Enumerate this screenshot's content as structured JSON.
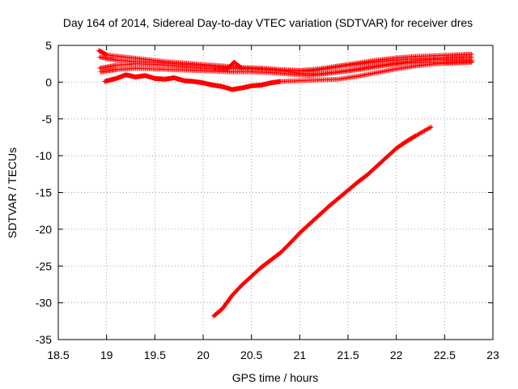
{
  "chart_data": {
    "type": "scatter",
    "title": "Day 164 of 2014, Sidereal Day-to-day VTEC variation (SDTVAR) for receiver dres",
    "xlabel": "GPS time / hours",
    "ylabel": "SDTVAR / TECUs",
    "xlim": [
      18.5,
      23
    ],
    "ylim": [
      -35,
      5
    ],
    "x_ticks": [
      "18.5",
      "19",
      "19.5",
      "20",
      "20.5",
      "21",
      "21.5",
      "22",
      "22.5",
      "23"
    ],
    "y_ticks": [
      "5",
      "0",
      "-5",
      "-10",
      "-15",
      "-20",
      "-25",
      "-30",
      "-35"
    ],
    "grid": true,
    "marker": "+",
    "series_color": "#ff0000",
    "series": [
      {
        "name": "trace-1",
        "points": [
          [
            18.92,
            4.3
          ],
          [
            19.0,
            3.7
          ],
          [
            19.2,
            3.4
          ],
          [
            19.4,
            3.1
          ],
          [
            19.6,
            2.8
          ],
          [
            19.8,
            2.6
          ],
          [
            20.0,
            2.4
          ],
          [
            20.2,
            2.2
          ],
          [
            20.4,
            2.0
          ],
          [
            20.6,
            1.9
          ],
          [
            20.8,
            1.7
          ],
          [
            21.0,
            1.6
          ],
          [
            21.2,
            1.8
          ],
          [
            21.4,
            2.2
          ],
          [
            21.6,
            2.6
          ],
          [
            21.8,
            3.0
          ],
          [
            22.0,
            3.3
          ],
          [
            22.2,
            3.5
          ],
          [
            22.4,
            3.6
          ],
          [
            22.6,
            3.7
          ],
          [
            22.78,
            3.8
          ]
        ]
      },
      {
        "name": "trace-2",
        "points": [
          [
            18.93,
            3.4
          ],
          [
            19.1,
            3.0
          ],
          [
            19.3,
            2.8
          ],
          [
            19.5,
            2.7
          ],
          [
            19.7,
            2.5
          ],
          [
            19.9,
            2.3
          ],
          [
            20.1,
            2.1
          ],
          [
            20.3,
            1.9
          ],
          [
            20.5,
            1.8
          ],
          [
            20.7,
            1.7
          ],
          [
            20.9,
            1.6
          ],
          [
            21.1,
            1.5
          ],
          [
            21.3,
            1.9
          ],
          [
            21.5,
            2.3
          ],
          [
            21.7,
            2.6
          ],
          [
            21.9,
            2.9
          ],
          [
            22.1,
            3.1
          ],
          [
            22.3,
            3.2
          ],
          [
            22.5,
            3.3
          ],
          [
            22.78,
            3.4
          ]
        ]
      },
      {
        "name": "trace-3",
        "points": [
          [
            18.93,
            1.9
          ],
          [
            19.1,
            2.3
          ],
          [
            19.3,
            2.5
          ],
          [
            19.5,
            2.4
          ],
          [
            19.7,
            2.2
          ],
          [
            19.9,
            2.0
          ],
          [
            20.1,
            1.8
          ],
          [
            20.25,
            1.8
          ],
          [
            20.32,
            2.7
          ],
          [
            20.4,
            1.9
          ],
          [
            20.6,
            1.8
          ],
          [
            20.8,
            1.6
          ],
          [
            21.0,
            1.2
          ],
          [
            21.2,
            1.1
          ],
          [
            21.4,
            1.4
          ],
          [
            21.6,
            1.8
          ],
          [
            21.8,
            2.2
          ],
          [
            22.0,
            2.6
          ],
          [
            22.2,
            2.9
          ],
          [
            22.4,
            3.1
          ],
          [
            22.6,
            3.0
          ],
          [
            22.78,
            3.0
          ]
        ]
      },
      {
        "name": "trace-4",
        "points": [
          [
            18.94,
            1.4
          ],
          [
            19.1,
            1.7
          ],
          [
            19.3,
            1.9
          ],
          [
            19.5,
            1.8
          ],
          [
            19.7,
            1.7
          ],
          [
            19.9,
            1.6
          ],
          [
            20.1,
            1.5
          ],
          [
            20.3,
            1.4
          ],
          [
            20.5,
            1.4
          ],
          [
            20.7,
            1.3
          ],
          [
            20.9,
            1.1
          ],
          [
            21.1,
            0.9
          ],
          [
            21.3,
            1.2
          ],
          [
            21.5,
            1.5
          ],
          [
            21.7,
            1.9
          ],
          [
            21.9,
            2.3
          ],
          [
            22.1,
            2.6
          ],
          [
            22.3,
            2.7
          ],
          [
            22.5,
            2.7
          ],
          [
            22.78,
            2.8
          ]
        ]
      },
      {
        "name": "trace-5",
        "points": [
          [
            18.98,
            0.1
          ],
          [
            19.1,
            0.5
          ],
          [
            19.2,
            1.0
          ],
          [
            19.3,
            0.7
          ],
          [
            19.4,
            0.9
          ],
          [
            19.5,
            0.5
          ],
          [
            19.6,
            0.4
          ],
          [
            19.7,
            0.6
          ],
          [
            19.8,
            0.2
          ],
          [
            19.9,
            0.1
          ],
          [
            20.0,
            -0.1
          ],
          [
            20.1,
            -0.4
          ],
          [
            20.2,
            -0.6
          ],
          [
            20.3,
            -1.0
          ],
          [
            20.4,
            -0.8
          ],
          [
            20.5,
            -0.5
          ],
          [
            20.6,
            -0.4
          ],
          [
            20.7,
            -0.1
          ],
          [
            20.8,
            0.1
          ],
          [
            21.0,
            0.2
          ],
          [
            21.2,
            0.3
          ],
          [
            21.4,
            0.4
          ],
          [
            21.6,
            0.8
          ],
          [
            21.8,
            1.3
          ],
          [
            22.0,
            1.8
          ],
          [
            22.2,
            2.2
          ],
          [
            22.4,
            2.5
          ],
          [
            22.6,
            2.6
          ],
          [
            22.78,
            2.7
          ]
        ]
      },
      {
        "name": "trace-6",
        "points": [
          [
            20.11,
            -31.8
          ],
          [
            20.2,
            -30.8
          ],
          [
            20.3,
            -29.0
          ],
          [
            20.4,
            -27.6
          ],
          [
            20.5,
            -26.4
          ],
          [
            20.6,
            -25.2
          ],
          [
            20.7,
            -24.2
          ],
          [
            20.8,
            -23.2
          ],
          [
            20.9,
            -21.9
          ],
          [
            21.0,
            -20.5
          ],
          [
            21.1,
            -19.3
          ],
          [
            21.2,
            -18.1
          ],
          [
            21.3,
            -16.9
          ],
          [
            21.4,
            -15.8
          ],
          [
            21.5,
            -14.7
          ],
          [
            21.6,
            -13.6
          ],
          [
            21.7,
            -12.6
          ],
          [
            21.8,
            -11.4
          ],
          [
            21.9,
            -10.2
          ],
          [
            22.0,
            -9.0
          ],
          [
            22.1,
            -8.1
          ],
          [
            22.2,
            -7.3
          ],
          [
            22.36,
            -6.1
          ]
        ]
      }
    ]
  }
}
